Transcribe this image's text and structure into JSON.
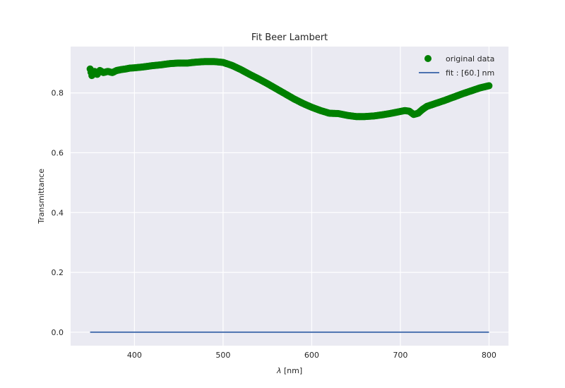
{
  "chart_data": {
    "type": "scatter",
    "title": "Fit Beer Lambert",
    "xlabel_symbol": "λ",
    "xlabel_unit": " [nm]",
    "ylabel": "Transmittance",
    "xlim": [
      328,
      822
    ],
    "ylim": [
      -0.045,
      0.955
    ],
    "xticks": [
      400,
      500,
      600,
      700,
      800
    ],
    "yticks": [
      0.0,
      0.2,
      0.4,
      0.6,
      0.8
    ],
    "ytick_labels": [
      "0.0",
      "0.2",
      "0.4",
      "0.6",
      "0.8"
    ],
    "grid": true,
    "legend_position": "top-right",
    "colors": {
      "plot_background": "#eaeaf2",
      "grid": "#ffffff",
      "original_data": "#008000",
      "fit": "#4c72b0"
    },
    "series": [
      {
        "name": "original data",
        "kind": "markers",
        "x": [
          350,
          352,
          355,
          358,
          361,
          365,
          370,
          375,
          380,
          385,
          390,
          395,
          400,
          410,
          420,
          430,
          440,
          450,
          460,
          470,
          480,
          490,
          500,
          510,
          520,
          530,
          540,
          550,
          560,
          570,
          580,
          590,
          600,
          610,
          620,
          630,
          640,
          650,
          660,
          670,
          680,
          690,
          700,
          705,
          710,
          715,
          720,
          725,
          730,
          740,
          750,
          760,
          770,
          780,
          790,
          800
        ],
        "y": [
          0.88,
          0.858,
          0.872,
          0.862,
          0.875,
          0.868,
          0.872,
          0.868,
          0.875,
          0.878,
          0.88,
          0.883,
          0.884,
          0.887,
          0.891,
          0.894,
          0.898,
          0.9,
          0.9,
          0.903,
          0.905,
          0.905,
          0.902,
          0.892,
          0.878,
          0.862,
          0.847,
          0.831,
          0.814,
          0.797,
          0.78,
          0.765,
          0.752,
          0.741,
          0.732,
          0.731,
          0.725,
          0.721,
          0.721,
          0.723,
          0.727,
          0.732,
          0.738,
          0.741,
          0.739,
          0.728,
          0.732,
          0.745,
          0.755,
          0.765,
          0.775,
          0.786,
          0.797,
          0.807,
          0.817,
          0.824
        ]
      },
      {
        "name": "fit : [60.] nm",
        "kind": "line",
        "x": [
          350,
          800
        ],
        "y": [
          0.0,
          0.0
        ]
      }
    ]
  }
}
